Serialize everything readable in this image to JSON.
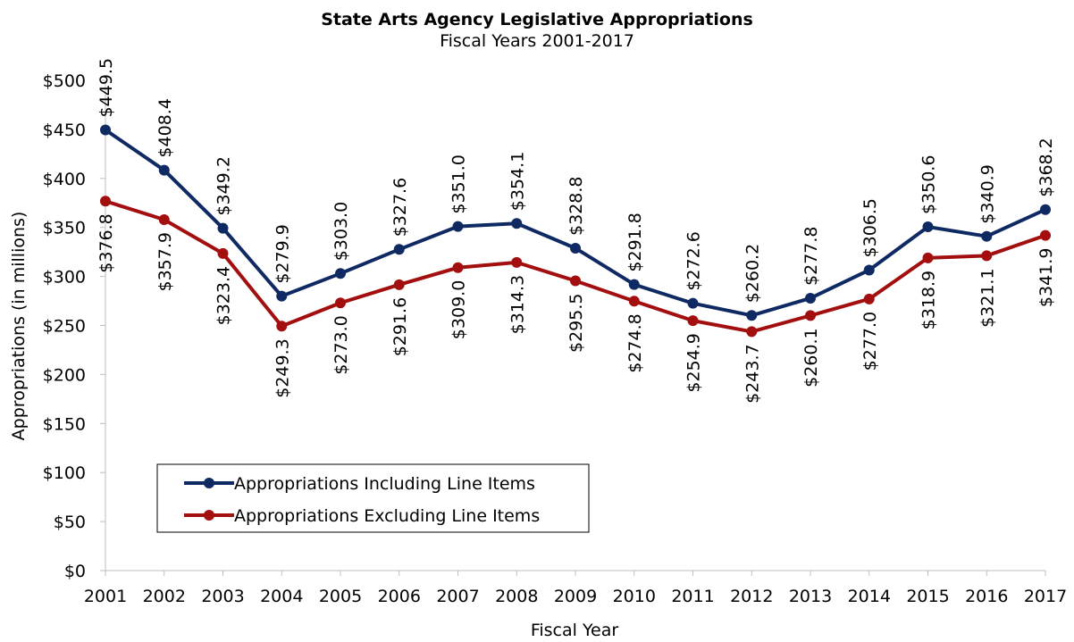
{
  "chart_data": {
    "type": "line",
    "title": "State Arts Agency Legislative Appropriations",
    "subtitle": "Fiscal Years 2001-2017",
    "xlabel": "Fiscal Year",
    "ylabel": "Appropriations (in millions)",
    "categories": [
      "2001",
      "2002",
      "2003",
      "2004",
      "2005",
      "2006",
      "2007",
      "2008",
      "2009",
      "2010",
      "2011",
      "2012",
      "2013",
      "2014",
      "2015",
      "2016",
      "2017"
    ],
    "ylim": [
      0,
      500
    ],
    "yticks": [
      0,
      50,
      100,
      150,
      200,
      250,
      300,
      350,
      400,
      450,
      500
    ],
    "ytick_labels": [
      "$0",
      "$50",
      "$100",
      "$150",
      "$200",
      "$250",
      "$300",
      "$350",
      "$400",
      "$450",
      "$500"
    ],
    "grid": false,
    "legend_position": "lower-left",
    "series": [
      {
        "name": "Appropriations Including Line Items",
        "color": "#0f2a63",
        "values": [
          449.5,
          408.4,
          349.2,
          279.9,
          303.0,
          327.6,
          351.0,
          354.1,
          328.8,
          291.8,
          272.6,
          260.2,
          277.8,
          306.5,
          350.6,
          340.9,
          368.2
        ],
        "labels": [
          "$449.5",
          "$408.4",
          "$349.2",
          "$279.9",
          "$303.0",
          "$327.6",
          "$351.0",
          "$354.1",
          "$328.8",
          "$291.8",
          "$272.6",
          "$260.2",
          "$277.8",
          "$306.5",
          "$350.6",
          "$340.9",
          "$368.2"
        ]
      },
      {
        "name": "Appropriations Excluding Line Items",
        "color": "#a30e0e",
        "values": [
          376.8,
          357.9,
          323.4,
          249.3,
          273.0,
          291.6,
          309.0,
          314.3,
          295.5,
          274.8,
          254.9,
          243.7,
          260.1,
          277.0,
          318.9,
          321.1,
          341.9
        ],
        "labels": [
          "$376.8",
          "$357.9",
          "$323.4",
          "$249.3",
          "$273.0",
          "$291.6",
          "$309.0",
          "$314.3",
          "$295.5",
          "$274.8",
          "$254.9",
          "$243.7",
          "$260.1",
          "$277.0",
          "$318.9",
          "$321.1",
          "$341.9"
        ]
      }
    ]
  }
}
